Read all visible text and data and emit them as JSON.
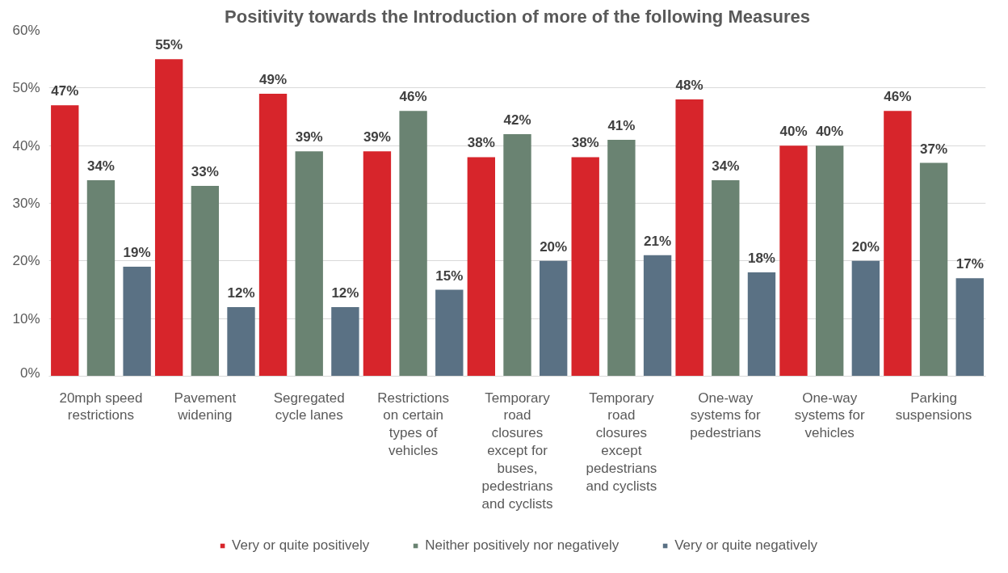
{
  "chart_data": {
    "type": "bar",
    "title": "Positivity towards the Introduction of more of the following Measures",
    "categories": [
      "20mph speed restrictions",
      "Pavement widening",
      "Segregated cycle lanes",
      "Restrictions on certain types of vehicles",
      "Temporary road closures except for buses, pedestrians and cyclists",
      "Temporary road closures except pedestrians and cyclists",
      "One-way systems for pedestrians",
      "One-way systems for vehicles",
      "Parking suspensions"
    ],
    "series": [
      {
        "name": "Very or quite positively",
        "color": "#d7252b",
        "values": [
          47,
          55,
          49,
          39,
          38,
          38,
          48,
          40,
          46
        ],
        "value_labels": [
          "47%",
          "55%",
          "49%",
          "39%",
          "38%",
          "38%",
          "48%",
          "40%",
          "46%"
        ]
      },
      {
        "name": "Neither positively nor negatively",
        "color": "#6a8372",
        "values": [
          34,
          33,
          39,
          46,
          42,
          41,
          34,
          40,
          37
        ],
        "value_labels": [
          "34%",
          "33%",
          "39%",
          "46%",
          "42%",
          "41%",
          "34%",
          "40%",
          "37%"
        ]
      },
      {
        "name": "Very or quite negatively",
        "color": "#5a7184",
        "values": [
          19,
          12,
          12,
          15,
          20,
          21,
          18,
          20,
          17
        ],
        "value_labels": [
          "19%",
          "12%",
          "12%",
          "15%",
          "20%",
          "21%",
          "18%",
          "20%",
          "17%"
        ]
      }
    ],
    "ylim": [
      0,
      60
    ],
    "yticks": [
      {
        "value": 0,
        "label": "0%"
      },
      {
        "value": 10,
        "label": "10%"
      },
      {
        "value": 20,
        "label": "20%"
      },
      {
        "value": 30,
        "label": "30%"
      },
      {
        "value": 40,
        "label": "40%"
      },
      {
        "value": 50,
        "label": "50%"
      },
      {
        "value": 60,
        "label": "60%"
      }
    ],
    "grid": "y",
    "legend": "bottom"
  }
}
